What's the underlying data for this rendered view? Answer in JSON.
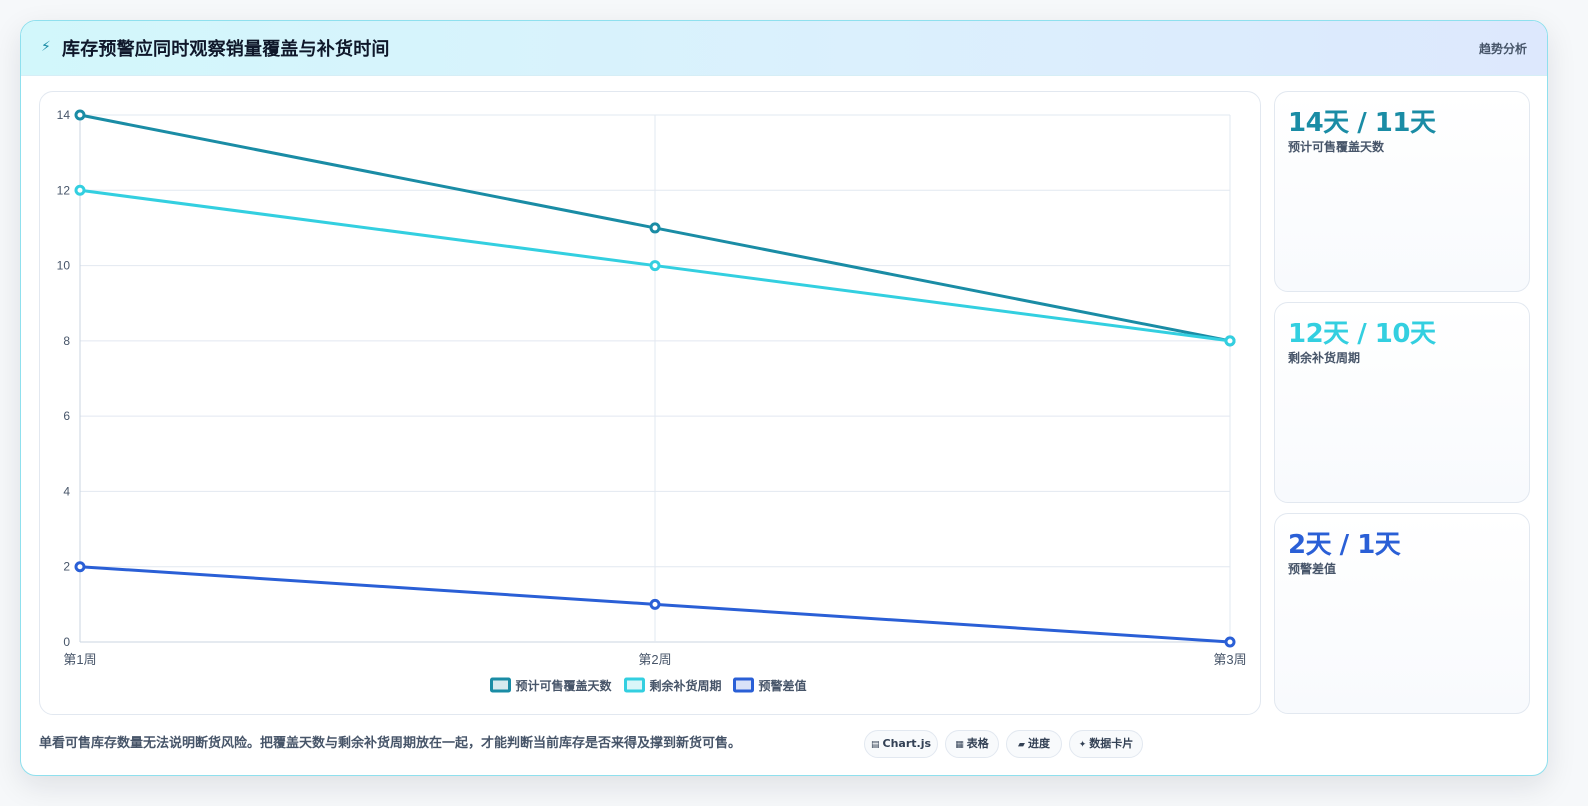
{
  "header": {
    "title": "库存预警应同时观察销量覆盖与补货时间",
    "tag": "趋势分析",
    "icon": "lightning-icon"
  },
  "colors": {
    "coverage": "#1a8ca5",
    "replenish": "#33cfe0",
    "gap": "#2a5fd6"
  },
  "chart_data": {
    "type": "line",
    "categories": [
      "第1周",
      "第2周",
      "第3周"
    ],
    "series": [
      {
        "name": "预计可售覆盖天数",
        "values": [
          14,
          11,
          8
        ]
      },
      {
        "name": "剩余补货周期",
        "values": [
          12,
          10,
          8
        ]
      },
      {
        "name": "预警差值",
        "values": [
          2,
          1,
          0
        ]
      }
    ],
    "ylim": [
      0,
      14
    ],
    "yticks": [
      0,
      2,
      4,
      6,
      8,
      10,
      12,
      14
    ],
    "grid": true,
    "legend": "bottom"
  },
  "cards": [
    {
      "value": "14天 / 11天",
      "label": "预计可售覆盖天数",
      "color": "#1a8ca5"
    },
    {
      "value": "12天 / 10天",
      "label": "剩余补货周期",
      "color": "#33cfe0"
    },
    {
      "value": "2天 / 1天",
      "label": "预警差值",
      "color": "#2a5fd6"
    }
  ],
  "footer": {
    "note": "单看可售库存数量无法说明断货风险。把覆盖天数与剩余补货周期放在一起，才能判断当前库存是否来得及撑到新货可售。",
    "pills": [
      {
        "icon": "▤",
        "label": "Chart.js"
      },
      {
        "icon": "▦",
        "label": "表格"
      },
      {
        "icon": "▰",
        "label": "进度"
      },
      {
        "icon": "✦",
        "label": "数据卡片"
      }
    ]
  }
}
